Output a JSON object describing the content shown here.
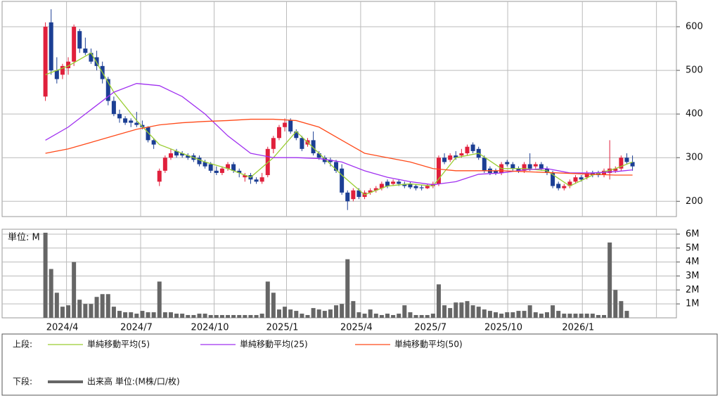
{
  "chart_data": [
    {
      "type": "candlestick",
      "up_color": "#e0203c",
      "down_color": "#1c3f94",
      "grid": true,
      "xlim": [
        -7.6,
        110.7
      ],
      "xticks": [
        3.7,
        16.7,
        29.6,
        42.3,
        55.3,
        68.3,
        81.1,
        94.2,
        107.2
      ],
      "ylim": [
        165,
        658
      ],
      "yticks": [
        200,
        300,
        400,
        500,
        600
      ],
      "candles": [
        [
          440,
          610,
          430,
          600
        ],
        [
          610,
          640,
          490,
          500
        ],
        [
          500,
          530,
          470,
          480
        ],
        [
          490,
          515,
          480,
          510
        ],
        [
          505,
          530,
          490,
          520
        ],
        [
          520,
          605,
          510,
          600
        ],
        [
          590,
          595,
          540,
          550
        ],
        [
          550,
          575,
          535,
          540
        ],
        [
          540,
          550,
          515,
          520
        ],
        [
          530,
          545,
          500,
          510
        ],
        [
          510,
          520,
          470,
          480
        ],
        [
          480,
          485,
          420,
          430
        ],
        [
          430,
          440,
          395,
          400
        ],
        [
          400,
          410,
          380,
          390
        ],
        [
          390,
          395,
          375,
          380
        ],
        [
          385,
          390,
          370,
          380
        ],
        [
          380,
          405,
          370,
          375
        ],
        [
          375,
          385,
          365,
          370
        ],
        [
          370,
          372,
          335,
          340
        ],
        [
          340,
          345,
          320,
          330
        ],
        [
          245,
          275,
          235,
          270
        ],
        [
          270,
          305,
          265,
          300
        ],
        [
          300,
          320,
          295,
          310
        ],
        [
          315,
          320,
          300,
          305
        ],
        [
          310,
          315,
          300,
          305
        ],
        [
          305,
          310,
          295,
          300
        ],
        [
          305,
          310,
          290,
          295
        ],
        [
          300,
          305,
          280,
          285
        ],
        [
          290,
          295,
          275,
          280
        ],
        [
          285,
          290,
          265,
          270
        ],
        [
          270,
          280,
          260,
          265
        ],
        [
          265,
          280,
          260,
          275
        ],
        [
          275,
          290,
          270,
          285
        ],
        [
          285,
          290,
          265,
          270
        ],
        [
          270,
          275,
          255,
          265
        ],
        [
          255,
          265,
          245,
          260
        ],
        [
          260,
          265,
          240,
          250
        ],
        [
          250,
          255,
          240,
          245
        ],
        [
          245,
          265,
          240,
          255
        ],
        [
          260,
          325,
          255,
          320
        ],
        [
          320,
          350,
          310,
          345
        ],
        [
          345,
          375,
          340,
          370
        ],
        [
          370,
          390,
          360,
          380
        ],
        [
          385,
          390,
          355,
          360
        ],
        [
          360,
          365,
          340,
          345
        ],
        [
          345,
          350,
          315,
          320
        ],
        [
          330,
          345,
          325,
          340
        ],
        [
          340,
          360,
          305,
          310
        ],
        [
          310,
          315,
          295,
          300
        ],
        [
          300,
          305,
          285,
          290
        ],
        [
          295,
          300,
          280,
          290
        ],
        [
          290,
          295,
          265,
          270
        ],
        [
          275,
          285,
          215,
          220
        ],
        [
          220,
          225,
          180,
          200
        ],
        [
          205,
          230,
          200,
          225
        ],
        [
          225,
          230,
          205,
          210
        ],
        [
          210,
          225,
          205,
          220
        ],
        [
          220,
          230,
          215,
          225
        ],
        [
          225,
          235,
          220,
          230
        ],
        [
          230,
          245,
          225,
          240
        ],
        [
          245,
          250,
          230,
          235
        ],
        [
          240,
          250,
          235,
          245
        ],
        [
          245,
          250,
          235,
          240
        ],
        [
          240,
          245,
          230,
          235
        ],
        [
          240,
          245,
          228,
          232
        ],
        [
          235,
          240,
          225,
          230
        ],
        [
          232,
          238,
          225,
          230
        ],
        [
          230,
          240,
          228,
          235
        ],
        [
          235,
          245,
          230,
          240
        ],
        [
          240,
          305,
          235,
          300
        ],
        [
          300,
          310,
          285,
          290
        ],
        [
          295,
          310,
          290,
          305
        ],
        [
          305,
          315,
          295,
          300
        ],
        [
          305,
          320,
          300,
          310
        ],
        [
          310,
          330,
          305,
          325
        ],
        [
          330,
          335,
          310,
          315
        ],
        [
          320,
          325,
          295,
          300
        ],
        [
          300,
          305,
          265,
          270
        ],
        [
          275,
          280,
          260,
          265
        ],
        [
          270,
          275,
          260,
          265
        ],
        [
          265,
          290,
          260,
          285
        ],
        [
          290,
          295,
          280,
          285
        ],
        [
          285,
          290,
          270,
          275
        ],
        [
          275,
          280,
          265,
          270
        ],
        [
          270,
          290,
          265,
          285
        ],
        [
          285,
          310,
          270,
          275
        ],
        [
          280,
          290,
          275,
          285
        ],
        [
          285,
          290,
          270,
          275
        ],
        [
          275,
          280,
          260,
          265
        ],
        [
          265,
          270,
          230,
          235
        ],
        [
          240,
          245,
          225,
          230
        ],
        [
          230,
          240,
          225,
          235
        ],
        [
          235,
          250,
          230,
          245
        ],
        [
          245,
          260,
          240,
          255
        ],
        [
          255,
          260,
          245,
          250
        ],
        [
          255,
          270,
          250,
          265
        ],
        [
          265,
          270,
          255,
          260
        ],
        [
          265,
          270,
          255,
          260
        ],
        [
          260,
          275,
          255,
          270
        ],
        [
          265,
          340,
          250,
          275
        ],
        [
          270,
          280,
          265,
          275
        ],
        [
          275,
          305,
          270,
          300
        ],
        [
          300,
          310,
          285,
          290
        ],
        [
          290,
          305,
          270,
          280
        ]
      ],
      "series": [
        {
          "name": "単純移動平均(5)",
          "color": "#9acd32",
          "x": [
            0,
            4,
            8,
            12,
            16,
            20,
            24,
            28,
            32,
            36,
            40,
            44,
            48,
            52,
            56,
            60,
            64,
            68,
            72,
            76,
            80,
            84,
            88,
            92,
            96,
            100,
            103
          ],
          "values": [
            490,
            510,
            540,
            450,
            385,
            330,
            310,
            290,
            275,
            255,
            300,
            360,
            310,
            260,
            215,
            235,
            240,
            235,
            300,
            310,
            275,
            275,
            270,
            235,
            260,
            275,
            290
          ]
        },
        {
          "name": "単純移動平均(25)",
          "color": "#a030f0",
          "x": [
            0,
            4,
            8,
            12,
            16,
            20,
            24,
            28,
            32,
            36,
            40,
            44,
            48,
            52,
            56,
            60,
            64,
            68,
            72,
            76,
            80,
            84,
            88,
            92,
            96,
            100,
            103
          ],
          "values": [
            340,
            370,
            410,
            450,
            470,
            465,
            440,
            400,
            350,
            310,
            300,
            300,
            298,
            290,
            270,
            255,
            245,
            238,
            245,
            262,
            265,
            272,
            275,
            265,
            265,
            268,
            272
          ]
        },
        {
          "name": "単純移動平均(50)",
          "color": "#ff4a1a",
          "x": [
            0,
            4,
            8,
            12,
            16,
            20,
            24,
            28,
            32,
            36,
            40,
            44,
            48,
            52,
            56,
            60,
            64,
            68,
            72,
            76,
            80,
            84,
            88,
            92,
            96,
            100,
            103
          ],
          "values": [
            310,
            320,
            335,
            350,
            365,
            375,
            380,
            383,
            385,
            388,
            388,
            385,
            370,
            340,
            310,
            300,
            290,
            275,
            270,
            270,
            270,
            268,
            266,
            264,
            262,
            260,
            260
          ]
        }
      ]
    },
    {
      "type": "bar",
      "ylabel": "単位: M",
      "grid": true,
      "xlim": [
        -7.6,
        110.7
      ],
      "xticks": [
        {
          "value": 3.7,
          "label": "2024/4"
        },
        {
          "value": 16.7,
          "label": "2024/7"
        },
        {
          "value": 29.6,
          "label": "2024/10"
        },
        {
          "value": 42.3,
          "label": "2025/1"
        },
        {
          "value": 55.3,
          "label": "2025/4"
        },
        {
          "value": 68.3,
          "label": "2025/7"
        },
        {
          "value": 81.1,
          "label": "2025/10"
        },
        {
          "value": 94.2,
          "label": "2026/1"
        },
        {
          "value": 107.2,
          "label": null
        }
      ],
      "ylim": [
        0,
        6.35
      ],
      "yticks": [
        {
          "value": 1,
          "label": "1M"
        },
        {
          "value": 2,
          "label": "2M"
        },
        {
          "value": 3,
          "label": "3M"
        },
        {
          "value": 4,
          "label": "4M"
        },
        {
          "value": 5,
          "label": "5M"
        },
        {
          "value": 6,
          "label": "6M"
        }
      ],
      "series": [
        {
          "name": "出来高 単位:(M株/口/枚)",
          "color": "#666666",
          "values": [
            6.1,
            3.5,
            1.8,
            0.8,
            0.9,
            4.0,
            1.3,
            1.0,
            1.0,
            1.5,
            1.7,
            1.7,
            0.8,
            0.5,
            0.4,
            0.4,
            0.3,
            0.5,
            0.4,
            0.4,
            2.6,
            0.4,
            0.4,
            0.3,
            0.3,
            0.2,
            0.2,
            0.3,
            0.3,
            0.2,
            0.2,
            0.2,
            0.2,
            0.2,
            0.2,
            0.2,
            0.2,
            0.2,
            0.3,
            2.6,
            1.8,
            0.6,
            0.8,
            0.6,
            0.5,
            0.3,
            0.2,
            0.7,
            0.6,
            0.5,
            0.6,
            0.9,
            1.0,
            4.2,
            1.2,
            0.4,
            0.3,
            0.6,
            0.3,
            0.2,
            0.3,
            0.2,
            0.3,
            0.9,
            0.4,
            0.2,
            0.2,
            0.2,
            0.3,
            2.4,
            0.9,
            0.7,
            1.1,
            1.1,
            1.2,
            0.9,
            0.8,
            0.6,
            0.5,
            0.4,
            0.3,
            0.4,
            0.4,
            0.5,
            0.5,
            0.9,
            0.4,
            0.3,
            0.4,
            0.9,
            0.5,
            0.3,
            0.3,
            0.3,
            0.3,
            0.3,
            0.3,
            0.2,
            0.2,
            5.4,
            2.0,
            1.2,
            0.5,
            0
          ]
        }
      ]
    }
  ],
  "legend": {
    "upper_label": "上段:",
    "lower_label": "下段:"
  }
}
